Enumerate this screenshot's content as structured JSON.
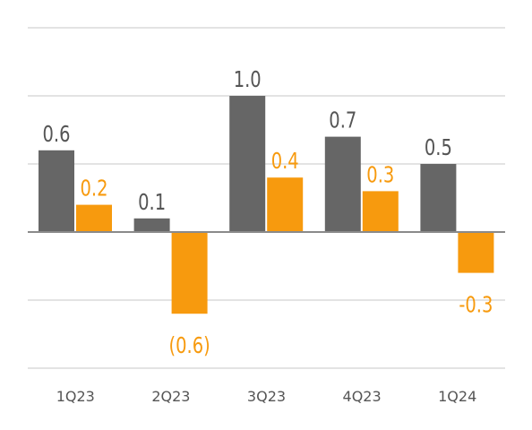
{
  "chart_data": {
    "type": "bar",
    "categories": [
      "1Q23",
      "2Q23",
      "3Q23",
      "4Q23",
      "1Q24"
    ],
    "series": [
      {
        "values": [
          0.6,
          0.1,
          1.0,
          0.7,
          0.5
        ],
        "color": "#666666",
        "labels": [
          "0.6",
          "0.1",
          "1.0",
          "0.7",
          "0.5"
        ]
      },
      {
        "values": [
          0.2,
          -0.6,
          0.4,
          0.3,
          -0.3
        ],
        "color": "#f79a0e",
        "labels": [
          "0.2",
          "(0.6)",
          "0.4",
          "0.3",
          "-0.3"
        ]
      }
    ],
    "ylim": [
      -1.0,
      1.5
    ],
    "grid": true,
    "legend": "none",
    "title": "",
    "xlabel": "",
    "ylabel": ""
  }
}
